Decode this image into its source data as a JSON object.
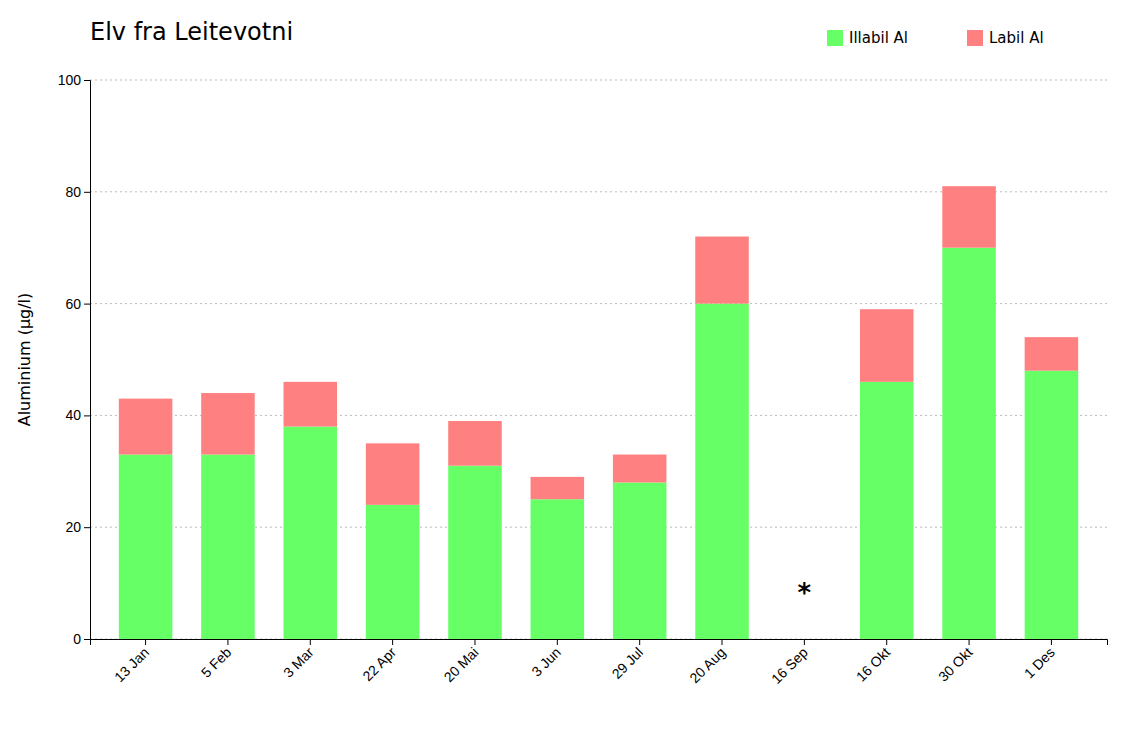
{
  "chart_data": {
    "type": "bar",
    "stacked": true,
    "title": "Elv fra Leitevotni",
    "ylabel": "Aluminium (μg/l)",
    "categories": [
      "13 Jan",
      "5 Feb",
      "3 Mar",
      "22 Apr",
      "20 Mai",
      "3 Jun",
      "29 Jul",
      "20 Aug",
      "16 Sep",
      "16 Okt",
      "30 Okt",
      "1 Des"
    ],
    "series": [
      {
        "name": "Illabil Al",
        "color": "#66FF66",
        "values": [
          33,
          33,
          38,
          24,
          31,
          25,
          28,
          60,
          0,
          46,
          70,
          48
        ]
      },
      {
        "name": "Labil Al",
        "color": "#FF8080",
        "values": [
          10,
          11,
          8,
          11,
          8,
          4,
          5,
          12,
          0,
          13,
          11,
          6
        ]
      }
    ],
    "annotations": [
      {
        "text": "*",
        "x": "16 Sep",
        "y": 8
      }
    ],
    "ylim": [
      0,
      100
    ],
    "yticks": [
      0,
      20,
      40,
      60,
      80,
      100
    ],
    "grid": true,
    "legend": "top-right"
  }
}
